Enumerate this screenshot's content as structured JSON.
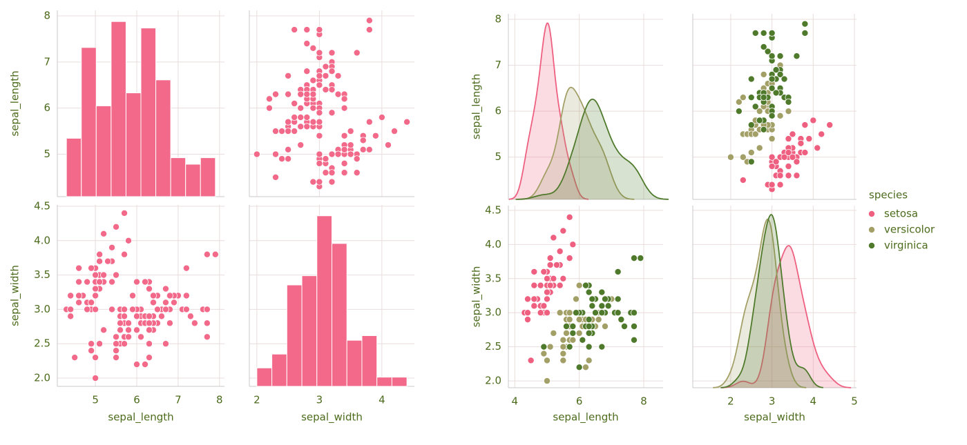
{
  "dataset": {
    "series": [
      {
        "name": "setosa",
        "color": "#ee5f80",
        "sepal_length": [
          5.1,
          4.9,
          4.7,
          4.6,
          5.0,
          5.4,
          4.6,
          5.0,
          4.4,
          4.9,
          5.4,
          4.8,
          4.8,
          4.3,
          5.8,
          5.7,
          5.4,
          5.1,
          5.7,
          5.1,
          5.4,
          5.1,
          4.6,
          5.1,
          4.8,
          5.0,
          5.0,
          5.2,
          5.2,
          4.7,
          4.8,
          5.4,
          5.2,
          5.5,
          4.9,
          5.0,
          5.5,
          4.9,
          4.4,
          5.1,
          5.0,
          4.5,
          4.4,
          5.0,
          5.1,
          4.8,
          5.1,
          4.6,
          5.3,
          5.0
        ],
        "sepal_width": [
          3.5,
          3.0,
          3.2,
          3.1,
          3.6,
          3.9,
          3.4,
          3.4,
          2.9,
          3.1,
          3.7,
          3.4,
          3.0,
          3.0,
          4.0,
          4.4,
          3.9,
          3.5,
          3.8,
          3.8,
          3.4,
          3.7,
          3.6,
          3.3,
          3.4,
          3.0,
          3.4,
          3.5,
          3.4,
          3.2,
          3.1,
          3.4,
          4.1,
          4.2,
          3.1,
          3.2,
          3.5,
          3.6,
          3.0,
          3.4,
          3.5,
          2.3,
          3.2,
          3.5,
          3.8,
          3.0,
          3.8,
          3.2,
          3.7,
          3.3
        ]
      },
      {
        "name": "versicolor",
        "color": "#a3a067",
        "sepal_length": [
          7.0,
          6.4,
          6.9,
          5.5,
          6.5,
          5.7,
          6.3,
          4.9,
          6.6,
          5.2,
          5.0,
          5.9,
          6.0,
          6.1,
          5.6,
          6.7,
          5.6,
          5.8,
          6.2,
          5.6,
          5.9,
          6.1,
          6.3,
          6.1,
          6.4,
          6.6,
          6.8,
          6.7,
          6.0,
          5.7,
          5.5,
          5.5,
          5.8,
          6.0,
          5.4,
          6.0,
          6.7,
          6.3,
          5.6,
          5.5,
          5.5,
          6.1,
          5.8,
          5.0,
          5.6,
          5.7,
          5.7,
          6.2,
          5.1,
          5.7
        ],
        "sepal_width": [
          3.2,
          3.2,
          3.1,
          2.3,
          2.8,
          2.8,
          3.3,
          2.4,
          2.9,
          2.7,
          2.0,
          3.0,
          2.2,
          2.9,
          2.9,
          3.1,
          3.0,
          2.7,
          2.2,
          2.5,
          3.2,
          2.8,
          2.5,
          2.8,
          2.9,
          3.0,
          2.8,
          3.0,
          2.9,
          2.6,
          2.4,
          2.4,
          2.7,
          2.7,
          3.0,
          3.4,
          3.1,
          2.3,
          3.0,
          2.5,
          2.6,
          3.0,
          2.6,
          2.3,
          2.7,
          3.0,
          2.9,
          2.9,
          2.5,
          2.8
        ]
      },
      {
        "name": "virginica",
        "color": "#4f7a2c",
        "sepal_length": [
          6.3,
          5.8,
          7.1,
          6.3,
          6.5,
          7.6,
          4.9,
          7.3,
          6.7,
          7.2,
          6.5,
          6.4,
          6.8,
          5.7,
          5.8,
          6.4,
          6.5,
          7.7,
          7.7,
          6.0,
          6.9,
          5.6,
          7.7,
          6.3,
          6.7,
          7.2,
          6.2,
          6.1,
          6.4,
          7.2,
          7.4,
          7.9,
          6.4,
          6.3,
          6.1,
          7.7,
          6.3,
          6.4,
          6.0,
          6.9,
          6.7,
          6.9,
          5.8,
          6.8,
          6.7,
          6.7,
          6.3,
          6.5,
          6.2,
          5.9
        ],
        "sepal_width": [
          3.3,
          2.7,
          3.0,
          2.9,
          3.0,
          3.0,
          2.5,
          2.9,
          2.5,
          3.6,
          3.2,
          2.7,
          3.0,
          2.5,
          2.8,
          3.2,
          3.0,
          3.8,
          2.6,
          2.2,
          3.2,
          2.8,
          2.8,
          2.7,
          3.3,
          3.2,
          2.8,
          3.0,
          2.8,
          3.0,
          2.8,
          3.8,
          2.8,
          2.8,
          2.6,
          3.0,
          3.4,
          3.1,
          3.0,
          3.1,
          3.1,
          3.1,
          2.7,
          3.2,
          3.3,
          3.0,
          2.5,
          3.0,
          3.4,
          3.0
        ]
      }
    ]
  },
  "chart_data": [
    {
      "type": "pairplot",
      "diag_kind": "hist",
      "color": "#f2698a",
      "grid": true,
      "variables": [
        "sepal_length",
        "sepal_width"
      ],
      "x_axes": [
        {
          "lim": [
            4.08,
            8.12
          ],
          "ticks": [
            5,
            6,
            7,
            8
          ]
        },
        {
          "lim": [
            1.88,
            4.52
          ],
          "ticks": [
            2,
            3,
            4
          ]
        }
      ],
      "y_axes": [
        {
          "lim": [
            4.08,
            8.12
          ],
          "ticks": [
            5,
            6,
            7,
            8
          ]
        },
        {
          "lim": [
            1.88,
            4.52
          ],
          "ticks": [
            {
              "value": 2,
              "label": "2.0"
            },
            2.5,
            {
              "value": 3,
              "label": "3.0"
            },
            3.5,
            {
              "value": 4,
              "label": "4.0"
            },
            4.5
          ]
        }
      ],
      "hist": [
        {
          "bins": [
            4.3,
            4.66,
            5.02,
            5.38,
            5.74,
            6.1,
            6.46,
            6.82,
            7.18,
            7.54,
            7.9
          ],
          "counts": [
            9,
            23,
            14,
            27,
            16,
            26,
            18,
            6,
            5,
            6
          ]
        },
        {
          "bins": [
            2.0,
            2.24,
            2.48,
            2.72,
            2.96,
            3.2,
            3.44,
            3.68,
            3.92,
            4.16,
            4.4
          ],
          "counts": [
            4,
            7,
            22,
            24,
            37,
            31,
            10,
            11,
            2,
            2
          ]
        }
      ]
    },
    {
      "type": "pairplot",
      "diag_kind": "kde",
      "grid": true,
      "hue_title": "species",
      "legend": "right",
      "variables": [
        "sepal_length",
        "sepal_width"
      ],
      "x_axes": [
        {
          "lim": [
            3.8,
            8.6
          ],
          "ticks": [
            4,
            6,
            8
          ]
        },
        {
          "lim": [
            1.08,
            5.05
          ],
          "ticks": [
            2,
            3,
            4,
            5
          ]
        }
      ],
      "y_axes": [
        {
          "lim": [
            4.08,
            8.12
          ],
          "ticks": [
            5,
            6,
            7,
            8
          ]
        },
        {
          "lim": [
            1.9,
            4.57
          ],
          "ticks": [
            {
              "value": 2,
              "label": "2.0"
            },
            2.5,
            {
              "value": 3,
              "label": "3.0"
            },
            3.5,
            {
              "value": 4,
              "label": "4.0"
            },
            4.5
          ]
        }
      ]
    }
  ]
}
